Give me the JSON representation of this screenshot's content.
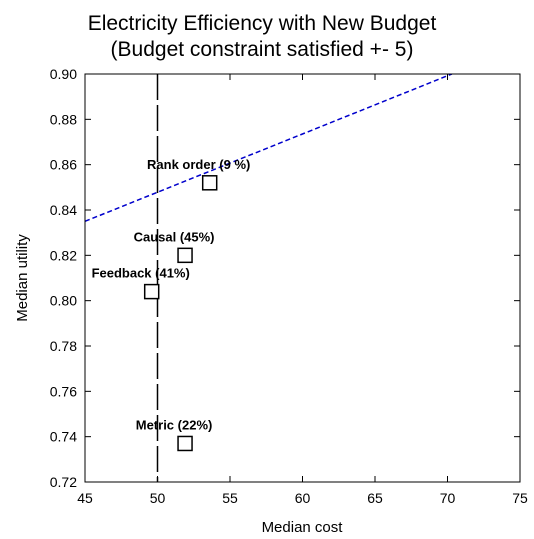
{
  "chart_data": {
    "type": "scatter",
    "title": "Electricity Efficiency with New Budget",
    "subtitle": "(Budget constraint satisfied +- 5)",
    "xlabel": "Median cost",
    "ylabel": "Median utility",
    "xlim": [
      45,
      75
    ],
    "ylim": [
      0.72,
      0.9
    ],
    "x_ticks": [
      "45",
      "50",
      "55",
      "60",
      "65",
      "70",
      "75"
    ],
    "y_ticks": [
      "0.72",
      "0.74",
      "0.76",
      "0.78",
      "0.80",
      "0.82",
      "0.84",
      "0.86",
      "0.88",
      "0.90"
    ],
    "grid": false,
    "points": [
      {
        "label": "Rank order (9 %)",
        "x": 53.6,
        "y": 0.852
      },
      {
        "label": "Causal (45%)",
        "x": 51.9,
        "y": 0.82
      },
      {
        "label": "Feedback (41%)",
        "x": 49.6,
        "y": 0.804
      },
      {
        "label": "Metric (22%)",
        "x": 51.9,
        "y": 0.737
      }
    ],
    "budget_line": {
      "x": 50,
      "style": "long-dash",
      "color": "#000000"
    },
    "frontier_line": {
      "x": [
        45,
        70.3
      ],
      "y": [
        0.835,
        0.9
      ],
      "style": "dashed",
      "color": "#0000cc"
    },
    "colors": {
      "marker": "#000000",
      "axis": "#000000"
    }
  }
}
